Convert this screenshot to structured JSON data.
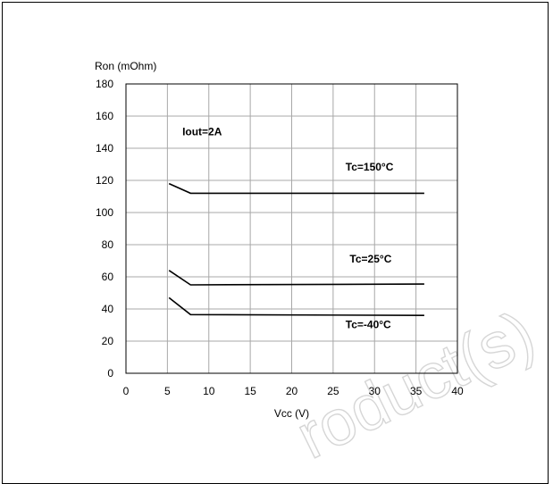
{
  "watermark": "roduct(s)",
  "chart_data": {
    "type": "line",
    "title": "",
    "xlabel": "Vcc (V)",
    "ylabel": "Ron (mOhm)",
    "xlim": [
      0,
      40
    ],
    "ylim": [
      0,
      180
    ],
    "xticks": [
      0,
      5,
      10,
      15,
      20,
      25,
      30,
      35,
      40
    ],
    "yticks": [
      0,
      20,
      40,
      60,
      80,
      100,
      120,
      140,
      160,
      180
    ],
    "grid": true,
    "line_color": "#000000",
    "annotations": [
      {
        "text": "Iout=2A",
        "x": 6.8,
        "y": 148
      },
      {
        "text": "Tc=150°C",
        "x": 26.5,
        "y": 126
      },
      {
        "text": "Tc=25°C",
        "x": 27,
        "y": 69
      },
      {
        "text": "Tc=-40°C",
        "x": 26.5,
        "y": 28
      }
    ],
    "series": [
      {
        "x": [
          5.2,
          7.8,
          36
        ],
        "y": [
          118,
          112,
          112
        ]
      },
      {
        "x": [
          5.2,
          7.8,
          36
        ],
        "y": [
          64,
          55,
          55.5
        ]
      },
      {
        "x": [
          5.2,
          7.8,
          36
        ],
        "y": [
          47,
          36.5,
          36
        ]
      }
    ]
  }
}
